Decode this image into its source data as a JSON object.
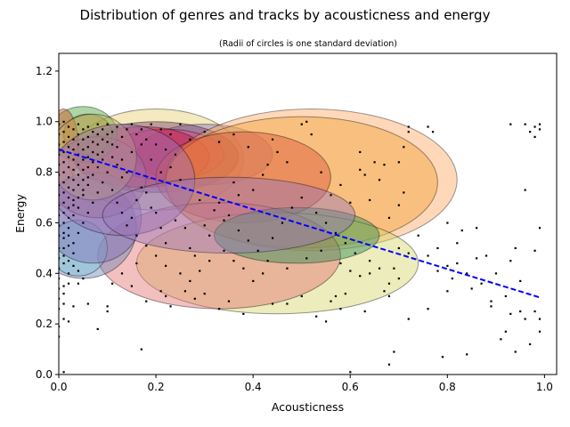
{
  "chart_data": {
    "type": "scatter",
    "title": "Distribution of genres and tracks by acousticness and energy",
    "subtitle": "(Radii of circles is one standard deviation)",
    "xlabel": "Acousticness",
    "ylabel": "Energy",
    "xlim": [
      0.0,
      1.025
    ],
    "ylim": [
      0.0,
      1.27
    ],
    "xticks": [
      "0.0",
      "0.2",
      "0.4",
      "0.6",
      "0.8",
      "1.0"
    ],
    "yticks": [
      "0.0",
      "0.2",
      "0.4",
      "0.6",
      "0.8",
      "1.0",
      "1.2"
    ],
    "grid": false,
    "trend_line": {
      "x": [
        0.0,
        0.99
      ],
      "y": [
        0.89,
        0.305
      ],
      "color": "#0000ff",
      "style": "dashed"
    },
    "genre_ellipses": [
      {
        "cx": 0.2,
        "cy": 0.85,
        "rx": 0.18,
        "ry": 0.2,
        "color": "#e6cf70"
      },
      {
        "cx": 0.3,
        "cy": 0.87,
        "rx": 0.14,
        "ry": 0.12,
        "color": "#8b6fc7"
      },
      {
        "cx": 0.2,
        "cy": 0.86,
        "rx": 0.17,
        "ry": 0.14,
        "color": "#7b3f6a"
      },
      {
        "cx": 0.22,
        "cy": 0.87,
        "rx": 0.12,
        "ry": 0.1,
        "color": "#e0428a"
      },
      {
        "cx": 0.17,
        "cy": 0.86,
        "rx": 0.14,
        "ry": 0.12,
        "color": "#c8143c"
      },
      {
        "cx": 0.05,
        "cy": 0.95,
        "rx": 0.07,
        "ry": 0.11,
        "color": "#4aa33a"
      },
      {
        "cx": 0.06,
        "cy": 0.95,
        "rx": 0.05,
        "ry": 0.08,
        "color": "#8e8e2c"
      },
      {
        "cx": 0.01,
        "cy": 0.9,
        "rx": 0.03,
        "ry": 0.15,
        "color": "#d05020"
      },
      {
        "cx": 0.52,
        "cy": 0.77,
        "rx": 0.3,
        "ry": 0.28,
        "color": "#fca863"
      },
      {
        "cx": 0.5,
        "cy": 0.76,
        "rx": 0.28,
        "ry": 0.26,
        "color": "#f4a23a"
      },
      {
        "cx": 0.38,
        "cy": 0.78,
        "rx": 0.18,
        "ry": 0.18,
        "color": "#d9543a"
      },
      {
        "cx": 0.45,
        "cy": 0.44,
        "rx": 0.29,
        "ry": 0.2,
        "color": "#d4d46a"
      },
      {
        "cx": 0.33,
        "cy": 0.47,
        "rx": 0.25,
        "ry": 0.21,
        "color": "#e57373"
      },
      {
        "cx": 0.49,
        "cy": 0.55,
        "rx": 0.17,
        "ry": 0.11,
        "color": "#2e8b57"
      },
      {
        "cx": 0.05,
        "cy": 0.58,
        "rx": 0.11,
        "ry": 0.2,
        "color": "#6f86b8"
      },
      {
        "cx": 0.04,
        "cy": 0.5,
        "rx": 0.06,
        "ry": 0.11,
        "color": "#7ec4d8"
      },
      {
        "cx": 0.07,
        "cy": 0.62,
        "rx": 0.1,
        "ry": 0.18,
        "color": "#7f6eb5"
      },
      {
        "cx": 0.08,
        "cy": 0.78,
        "rx": 0.1,
        "ry": 0.16,
        "color": "#a16f8e"
      },
      {
        "cx": 0.07,
        "cy": 0.86,
        "rx": 0.09,
        "ry": 0.17,
        "color": "#c9b46a"
      },
      {
        "cx": 0.13,
        "cy": 0.77,
        "rx": 0.15,
        "ry": 0.22,
        "color": "#9d6fb5"
      },
      {
        "cx": 0.35,
        "cy": 0.63,
        "rx": 0.26,
        "ry": 0.15,
        "color": "#9876b8"
      }
    ],
    "tracks": [
      [
        0.96,
        0.99
      ],
      [
        0.93,
        0.99
      ],
      [
        0.99,
        0.99
      ],
      [
        0.98,
        0.98
      ],
      [
        0.99,
        0.97
      ],
      [
        0.97,
        0.96
      ],
      [
        0.98,
        0.94
      ],
      [
        0.96,
        0.73
      ],
      [
        0.99,
        0.58
      ],
      [
        0.98,
        0.49
      ],
      [
        0.94,
        0.5
      ],
      [
        0.95,
        0.37
      ],
      [
        0.93,
        0.45
      ],
      [
        0.92,
        0.31
      ],
      [
        0.93,
        0.24
      ],
      [
        0.95,
        0.25
      ],
      [
        0.96,
        0.22
      ],
      [
        0.98,
        0.25
      ],
      [
        0.99,
        0.22
      ],
      [
        0.97,
        0.12
      ],
      [
        0.99,
        0.17
      ],
      [
        0.94,
        0.09
      ],
      [
        0.91,
        0.14
      ],
      [
        0.92,
        0.17
      ],
      [
        0.89,
        0.27
      ],
      [
        0.89,
        0.29
      ],
      [
        0.87,
        0.36
      ],
      [
        0.85,
        0.34
      ],
      [
        0.84,
        0.4
      ],
      [
        0.82,
        0.44
      ],
      [
        0.81,
        0.38
      ],
      [
        0.8,
        0.43
      ],
      [
        0.8,
        0.33
      ],
      [
        0.78,
        0.41
      ],
      [
        0.79,
        0.07
      ],
      [
        0.84,
        0.08
      ],
      [
        0.86,
        0.58
      ],
      [
        0.83,
        0.57
      ],
      [
        0.8,
        0.6
      ],
      [
        0.76,
        0.47
      ],
      [
        0.76,
        0.26
      ],
      [
        0.76,
        0.98
      ],
      [
        0.77,
        0.96
      ],
      [
        0.72,
        0.98
      ],
      [
        0.72,
        0.96
      ],
      [
        0.71,
        0.9
      ],
      [
        0.71,
        0.72
      ],
      [
        0.7,
        0.67
      ],
      [
        0.7,
        0.5
      ],
      [
        0.72,
        0.48
      ],
      [
        0.69,
        0.42
      ],
      [
        0.7,
        0.38
      ],
      [
        0.68,
        0.36
      ],
      [
        0.67,
        0.33
      ],
      [
        0.68,
        0.31
      ],
      [
        0.72,
        0.22
      ],
      [
        0.69,
        0.09
      ],
      [
        0.68,
        0.04
      ],
      [
        0.62,
        0.39
      ],
      [
        0.64,
        0.4
      ],
      [
        0.63,
        0.25
      ],
      [
        0.6,
        0.01
      ],
      [
        0.59,
        0.32
      ],
      [
        0.58,
        0.26
      ],
      [
        0.57,
        0.31
      ],
      [
        0.56,
        0.29
      ],
      [
        0.55,
        0.21
      ],
      [
        0.53,
        0.23
      ],
      [
        0.5,
        0.31
      ],
      [
        0.47,
        0.28
      ],
      [
        0.44,
        0.28
      ],
      [
        0.42,
        0.4
      ],
      [
        0.4,
        0.37
      ],
      [
        0.38,
        0.24
      ],
      [
        0.35,
        0.29
      ],
      [
        0.33,
        0.26
      ],
      [
        0.3,
        0.32
      ],
      [
        0.28,
        0.3
      ],
      [
        0.26,
        0.33
      ],
      [
        0.23,
        0.27
      ],
      [
        0.22,
        0.31
      ],
      [
        0.21,
        0.33
      ],
      [
        0.18,
        0.29
      ],
      [
        0.16,
        0.44
      ],
      [
        0.15,
        0.35
      ],
      [
        0.17,
        0.1
      ],
      [
        0.13,
        0.4
      ],
      [
        0.11,
        0.36
      ],
      [
        0.1,
        0.27
      ],
      [
        0.1,
        0.25
      ],
      [
        0.08,
        0.18
      ],
      [
        0.06,
        0.28
      ],
      [
        0.05,
        0.38
      ],
      [
        0.04,
        0.36
      ],
      [
        0.03,
        0.27
      ],
      [
        0.02,
        0.21
      ],
      [
        0.01,
        0.22
      ],
      [
        0.0,
        0.19
      ],
      [
        0.0,
        0.15
      ],
      [
        0.01,
        0.01
      ],
      [
        0.0,
        0.38
      ],
      [
        0.01,
        0.35
      ],
      [
        0.62,
        0.81
      ],
      [
        0.63,
        0.79
      ],
      [
        0.65,
        0.84
      ],
      [
        0.67,
        0.83
      ],
      [
        0.62,
        0.88
      ],
      [
        0.51,
        1.0
      ],
      [
        0.52,
        0.95
      ],
      [
        0.5,
        0.99
      ],
      [
        0.45,
        0.88
      ],
      [
        0.43,
        0.83
      ],
      [
        0.42,
        0.79
      ],
      [
        0.4,
        0.73
      ],
      [
        0.37,
        0.71
      ],
      [
        0.36,
        0.76
      ],
      [
        0.35,
        0.63
      ],
      [
        0.33,
        0.68
      ],
      [
        0.31,
        0.55
      ],
      [
        0.3,
        0.59
      ],
      [
        0.28,
        0.47
      ],
      [
        0.27,
        0.5
      ],
      [
        0.26,
        0.58
      ],
      [
        0.24,
        0.61
      ],
      [
        0.22,
        0.52
      ],
      [
        0.21,
        0.58
      ],
      [
        0.2,
        0.64
      ],
      [
        0.19,
        0.66
      ],
      [
        0.18,
        0.72
      ],
      [
        0.17,
        0.74
      ],
      [
        0.16,
        0.69
      ],
      [
        0.15,
        0.62
      ],
      [
        0.14,
        0.8
      ],
      [
        0.13,
        0.85
      ],
      [
        0.12,
        0.9
      ],
      [
        0.11,
        0.96
      ],
      [
        0.1,
        0.92
      ],
      [
        0.09,
        0.88
      ],
      [
        0.08,
        0.82
      ],
      [
        0.07,
        0.79
      ],
      [
        0.06,
        0.75
      ],
      [
        0.05,
        0.71
      ],
      [
        0.04,
        0.66
      ],
      [
        0.03,
        0.63
      ],
      [
        0.02,
        0.58
      ],
      [
        0.01,
        0.54
      ],
      [
        0.0,
        0.5
      ],
      [
        0.01,
        0.47
      ],
      [
        0.02,
        0.45
      ],
      [
        0.03,
        0.43
      ],
      [
        0.04,
        0.41
      ],
      [
        0.0,
        0.83
      ],
      [
        0.0,
        0.87
      ],
      [
        0.0,
        0.91
      ],
      [
        0.0,
        0.95
      ],
      [
        0.0,
        0.99
      ],
      [
        0.01,
        1.0
      ],
      [
        0.01,
        0.96
      ],
      [
        0.01,
        0.92
      ],
      [
        0.01,
        0.88
      ],
      [
        0.01,
        0.84
      ],
      [
        0.01,
        0.8
      ],
      [
        0.01,
        0.76
      ],
      [
        0.01,
        0.72
      ],
      [
        0.01,
        0.68
      ],
      [
        0.01,
        0.64
      ],
      [
        0.02,
        0.98
      ],
      [
        0.02,
        0.94
      ],
      [
        0.02,
        0.9
      ],
      [
        0.02,
        0.86
      ],
      [
        0.02,
        0.82
      ],
      [
        0.02,
        0.78
      ],
      [
        0.02,
        0.74
      ],
      [
        0.02,
        0.7
      ],
      [
        0.03,
        0.97
      ],
      [
        0.03,
        0.93
      ],
      [
        0.03,
        0.89
      ],
      [
        0.03,
        0.85
      ],
      [
        0.03,
        0.81
      ],
      [
        0.03,
        0.77
      ],
      [
        0.04,
        0.99
      ],
      [
        0.04,
        0.95
      ],
      [
        0.04,
        0.91
      ],
      [
        0.04,
        0.87
      ],
      [
        0.04,
        0.83
      ],
      [
        0.05,
        0.97
      ],
      [
        0.05,
        0.93
      ],
      [
        0.05,
        0.89
      ],
      [
        0.05,
        0.85
      ],
      [
        0.06,
        0.98
      ],
      [
        0.06,
        0.94
      ],
      [
        0.06,
        0.9
      ],
      [
        0.07,
        0.96
      ],
      [
        0.07,
        0.92
      ],
      [
        0.08,
        0.99
      ],
      [
        0.08,
        0.95
      ],
      [
        0.09,
        0.97
      ],
      [
        0.1,
        0.99
      ],
      [
        0.12,
        0.98
      ],
      [
        0.14,
        0.97
      ],
      [
        0.16,
        0.95
      ],
      [
        0.18,
        0.93
      ],
      [
        0.2,
        0.91
      ],
      [
        0.22,
        0.89
      ],
      [
        0.24,
        0.87
      ],
      [
        0.0,
        0.79
      ],
      [
        0.0,
        0.75
      ],
      [
        0.0,
        0.71
      ],
      [
        0.0,
        0.67
      ],
      [
        0.0,
        0.63
      ],
      [
        0.0,
        0.59
      ],
      [
        0.0,
        0.55
      ],
      [
        0.0,
        0.46
      ],
      [
        0.0,
        0.42
      ],
      [
        0.01,
        0.6
      ],
      [
        0.01,
        0.56
      ],
      [
        0.02,
        0.66
      ],
      [
        0.02,
        0.62
      ],
      [
        0.03,
        0.73
      ],
      [
        0.03,
        0.69
      ],
      [
        0.04,
        0.79
      ],
      [
        0.04,
        0.75
      ],
      [
        0.05,
        0.81
      ],
      [
        0.05,
        0.77
      ],
      [
        0.06,
        0.86
      ],
      [
        0.06,
        0.82
      ],
      [
        0.07,
        0.88
      ],
      [
        0.08,
        0.91
      ],
      [
        0.09,
        0.93
      ],
      [
        0.1,
        0.95
      ],
      [
        0.11,
        0.86
      ],
      [
        0.12,
        0.83
      ],
      [
        0.13,
        0.78
      ],
      [
        0.15,
        0.88
      ],
      [
        0.17,
        0.91
      ],
      [
        0.19,
        0.85
      ],
      [
        0.21,
        0.8
      ],
      [
        0.23,
        0.82
      ],
      [
        0.25,
        0.77
      ],
      [
        0.27,
        0.73
      ],
      [
        0.29,
        0.69
      ],
      [
        0.32,
        0.65
      ],
      [
        0.34,
        0.61
      ],
      [
        0.37,
        0.57
      ],
      [
        0.39,
        0.53
      ],
      [
        0.41,
        0.49
      ],
      [
        0.44,
        0.54
      ],
      [
        0.46,
        0.6
      ],
      [
        0.48,
        0.66
      ],
      [
        0.5,
        0.7
      ],
      [
        0.53,
        0.64
      ],
      [
        0.55,
        0.6
      ],
      [
        0.57,
        0.56
      ],
      [
        0.59,
        0.52
      ],
      [
        0.61,
        0.48
      ],
      [
        0.64,
        0.45
      ],
      [
        0.66,
        0.42
      ],
      [
        0.0,
        0.3
      ],
      [
        0.0,
        0.26
      ],
      [
        0.01,
        0.32
      ],
      [
        0.02,
        0.4
      ],
      [
        0.02,
        0.36
      ],
      [
        0.03,
        0.48
      ],
      [
        0.03,
        0.52
      ],
      [
        0.04,
        0.56
      ],
      [
        0.05,
        0.6
      ],
      [
        0.06,
        0.64
      ],
      [
        0.07,
        0.68
      ],
      [
        0.08,
        0.72
      ],
      [
        0.09,
        0.76
      ],
      [
        0.1,
        0.8
      ],
      [
        0.11,
        0.73
      ],
      [
        0.12,
        0.68
      ],
      [
        0.13,
        0.64
      ],
      [
        0.14,
        0.59
      ],
      [
        0.16,
        0.55
      ],
      [
        0.18,
        0.51
      ],
      [
        0.2,
        0.47
      ],
      [
        0.22,
        0.43
      ],
      [
        0.25,
        0.4
      ],
      [
        0.27,
        0.37
      ],
      [
        0.29,
        0.41
      ],
      [
        0.31,
        0.45
      ],
      [
        0.34,
        0.49
      ],
      [
        0.36,
        0.45
      ],
      [
        0.38,
        0.42
      ],
      [
        0.43,
        0.45
      ],
      [
        0.47,
        0.42
      ],
      [
        0.51,
        0.46
      ],
      [
        0.54,
        0.49
      ],
      [
        0.58,
        0.44
      ],
      [
        0.6,
        0.41
      ],
      [
        0.56,
        0.71
      ],
      [
        0.58,
        0.75
      ],
      [
        0.6,
        0.68
      ],
      [
        0.54,
        0.8
      ],
      [
        0.47,
        0.84
      ],
      [
        0.44,
        0.93
      ],
      [
        0.39,
        0.9
      ],
      [
        0.36,
        0.95
      ],
      [
        0.33,
        0.92
      ],
      [
        0.3,
        0.96
      ],
      [
        0.27,
        0.93
      ],
      [
        0.25,
        0.99
      ],
      [
        0.23,
        0.95
      ],
      [
        0.21,
        0.97
      ],
      [
        0.19,
        0.99
      ],
      [
        0.17,
        0.97
      ],
      [
        0.15,
        0.99
      ],
      [
        0.13,
        0.94
      ],
      [
        0.11,
        0.91
      ],
      [
        0.09,
        0.85
      ],
      [
        0.08,
        0.87
      ],
      [
        0.07,
        0.84
      ],
      [
        0.06,
        0.78
      ],
      [
        0.05,
        0.73
      ],
      [
        0.04,
        0.7
      ],
      [
        0.03,
        0.67
      ],
      [
        0.02,
        0.55
      ],
      [
        0.02,
        0.51
      ],
      [
        0.01,
        0.5
      ],
      [
        0.01,
        0.44
      ],
      [
        0.0,
        0.34
      ],
      [
        0.01,
        0.28
      ],
      [
        0.7,
        0.84
      ],
      [
        0.66,
        0.77
      ],
      [
        0.64,
        0.69
      ],
      [
        0.68,
        0.62
      ],
      [
        0.74,
        0.55
      ],
      [
        0.78,
        0.5
      ],
      [
        0.88,
        0.47
      ],
      [
        0.9,
        0.4
      ],
      [
        0.86,
        0.46
      ],
      [
        0.82,
        0.52
      ]
    ]
  }
}
